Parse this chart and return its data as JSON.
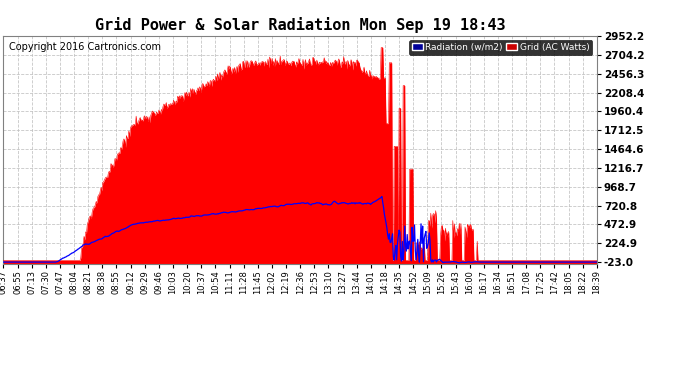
{
  "title": "Grid Power & Solar Radiation Mon Sep 19 18:43",
  "copyright": "Copyright 2016 Cartronics.com",
  "legend_radiation": "Radiation (w/m2)",
  "legend_grid": "Grid (AC Watts)",
  "ytick_values": [
    2952.2,
    2704.2,
    2456.3,
    2208.4,
    1960.4,
    1712.5,
    1464.6,
    1216.7,
    968.7,
    720.8,
    472.9,
    224.9,
    -23.0
  ],
  "xtick_labels": [
    "06:37",
    "06:55",
    "07:13",
    "07:30",
    "07:47",
    "08:04",
    "08:21",
    "08:38",
    "08:55",
    "09:12",
    "09:29",
    "09:46",
    "10:03",
    "10:20",
    "10:37",
    "10:54",
    "11:11",
    "11:28",
    "11:45",
    "12:02",
    "12:19",
    "12:36",
    "12:53",
    "13:10",
    "13:27",
    "13:44",
    "14:01",
    "14:18",
    "14:35",
    "14:52",
    "15:09",
    "15:26",
    "15:43",
    "16:00",
    "16:17",
    "16:34",
    "16:51",
    "17:08",
    "17:25",
    "17:42",
    "18:05",
    "18:22",
    "18:39"
  ],
  "bg_color": "#ffffff",
  "radiation_color": "#ff0000",
  "grid_line_color": "#0000ff",
  "grid_color": "#c0c0c0",
  "title_fontsize": 11,
  "copyright_fontsize": 7,
  "tick_fontsize": 6,
  "ytick_fontsize": 7.5,
  "ymin": -23.0,
  "ymax": 2952.2,
  "legend_bg_radiation": "#000099",
  "legend_bg_grid": "#cc0000",
  "n_points": 730
}
